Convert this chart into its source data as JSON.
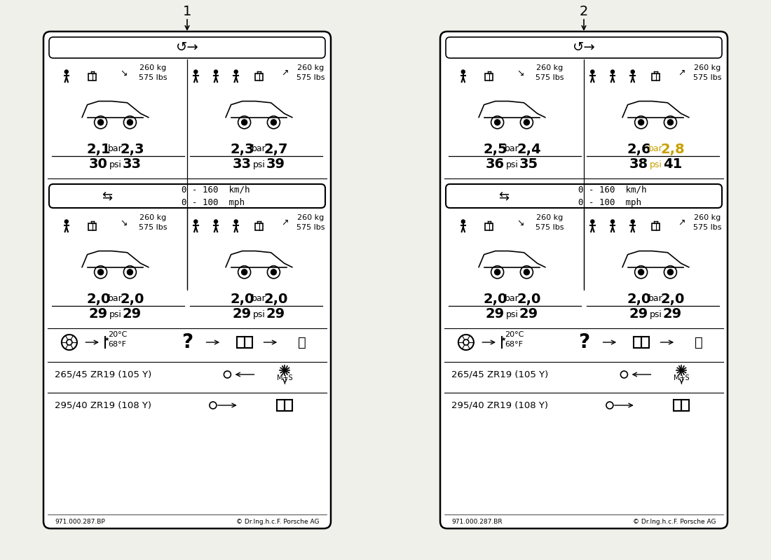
{
  "bg_color": "#f0f0eb",
  "panel1": {
    "label": "1",
    "part_code": "971.000.287.BP",
    "s1_left": {
      "fb": "2,1",
      "rb": "2,3",
      "fp": "30",
      "rp": "33"
    },
    "s1_right": {
      "fb": "2,3",
      "rb": "2,7",
      "fp": "33",
      "rp": "39",
      "hl_rb": false,
      "hl_psi": false
    },
    "s2_left": {
      "fb": "2,0",
      "rb": "2,0",
      "fp": "29",
      "rp": "29"
    },
    "s2_right": {
      "fb": "2,0",
      "rb": "2,0",
      "fp": "29",
      "rp": "29"
    }
  },
  "panel2": {
    "label": "2",
    "part_code": "971.000.287.BR",
    "s1_left": {
      "fb": "2,5",
      "rb": "2,4",
      "fp": "36",
      "rp": "35"
    },
    "s1_right": {
      "fb": "2,6",
      "rb": "2,8",
      "fp": "38",
      "rp": "41",
      "hl_rb": true,
      "hl_psi": true
    },
    "s2_left": {
      "fb": "2,0",
      "rb": "2,0",
      "fp": "29",
      "rp": "29"
    },
    "s2_right": {
      "fb": "2,0",
      "rb": "2,0",
      "fp": "29",
      "rp": "29"
    }
  },
  "load_text": "260 kg\n575 lbs",
  "speed_text": "0 - 160  km/h\n0 - 100  mph",
  "temp_text": "20°C\n68°F",
  "tyre1": "265/45 ZR19 (105 Y)",
  "tyre2": "295/40 ZR19 (108 Y)",
  "copyright": "© Dr.Ing.h.c.F. Porsche AG"
}
